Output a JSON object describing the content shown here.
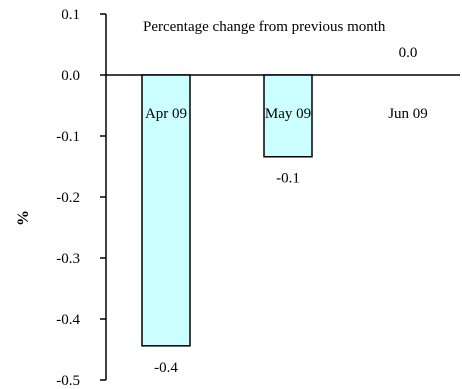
{
  "chart_data": {
    "type": "bar",
    "title": "Percentage change from previous month",
    "xlabel": "",
    "ylabel": "%",
    "categories": [
      "Apr 09",
      "May 09",
      "Jun 09"
    ],
    "values": [
      -0.444,
      -0.134,
      0.0
    ],
    "data_labels": [
      "-0.4",
      "-0.1",
      "0.0"
    ],
    "ylim": [
      -0.5,
      0.1
    ],
    "yticks": [
      0.1,
      0.0,
      -0.1,
      -0.2,
      -0.3,
      -0.4,
      -0.5
    ],
    "ytick_labels": [
      "0.1",
      "0.0",
      "-0.1",
      "-0.2",
      "-0.3",
      "-0.4",
      "-0.5"
    ],
    "bar_color": "#ccffff",
    "bar_edge_color": "#000000",
    "grid": false,
    "legend": "none"
  }
}
